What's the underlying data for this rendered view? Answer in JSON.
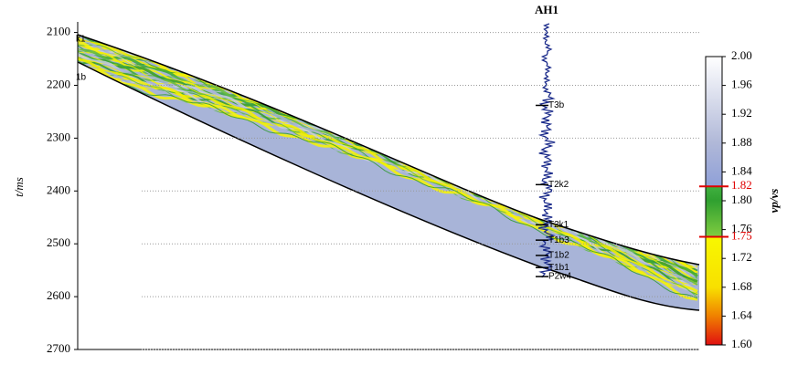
{
  "chart_data": {
    "type": "section",
    "title": "AH1",
    "y_label": "t/ms",
    "ylim": [
      2080,
      2700
    ],
    "yticks": [
      2100,
      2200,
      2300,
      2400,
      2500,
      2600,
      2700
    ],
    "horizons": [
      {
        "name": "T3b",
        "t": 2238
      },
      {
        "name": "T2k2",
        "t": 2388
      },
      {
        "name": "T2k1",
        "t": 2464
      },
      {
        "name": "T1b3",
        "t": 2493
      },
      {
        "name": "T1b2",
        "t": 2522
      },
      {
        "name": "T1b1",
        "t": 2545
      },
      {
        "name": "P2w4",
        "t": 2562
      }
    ],
    "edge_labels": [
      {
        "name": "k1",
        "t": 2113
      },
      {
        "name": "1b",
        "t": 2185
      }
    ],
    "colorbar": {
      "label": "vp/vs",
      "clim": [
        1.6,
        2.0
      ],
      "ticks": [
        {
          "value": 1.6,
          "label": "1.60"
        },
        1.64,
        1.68,
        1.72,
        1.76,
        {
          "value": 1.8,
          "label": "1.80"
        },
        1.84,
        1.88,
        1.92,
        1.96,
        {
          "value": 2.0,
          "label": "2.00"
        }
      ],
      "highlights": [
        1.75,
        1.82
      ],
      "highlight_color": "#e00000"
    }
  }
}
